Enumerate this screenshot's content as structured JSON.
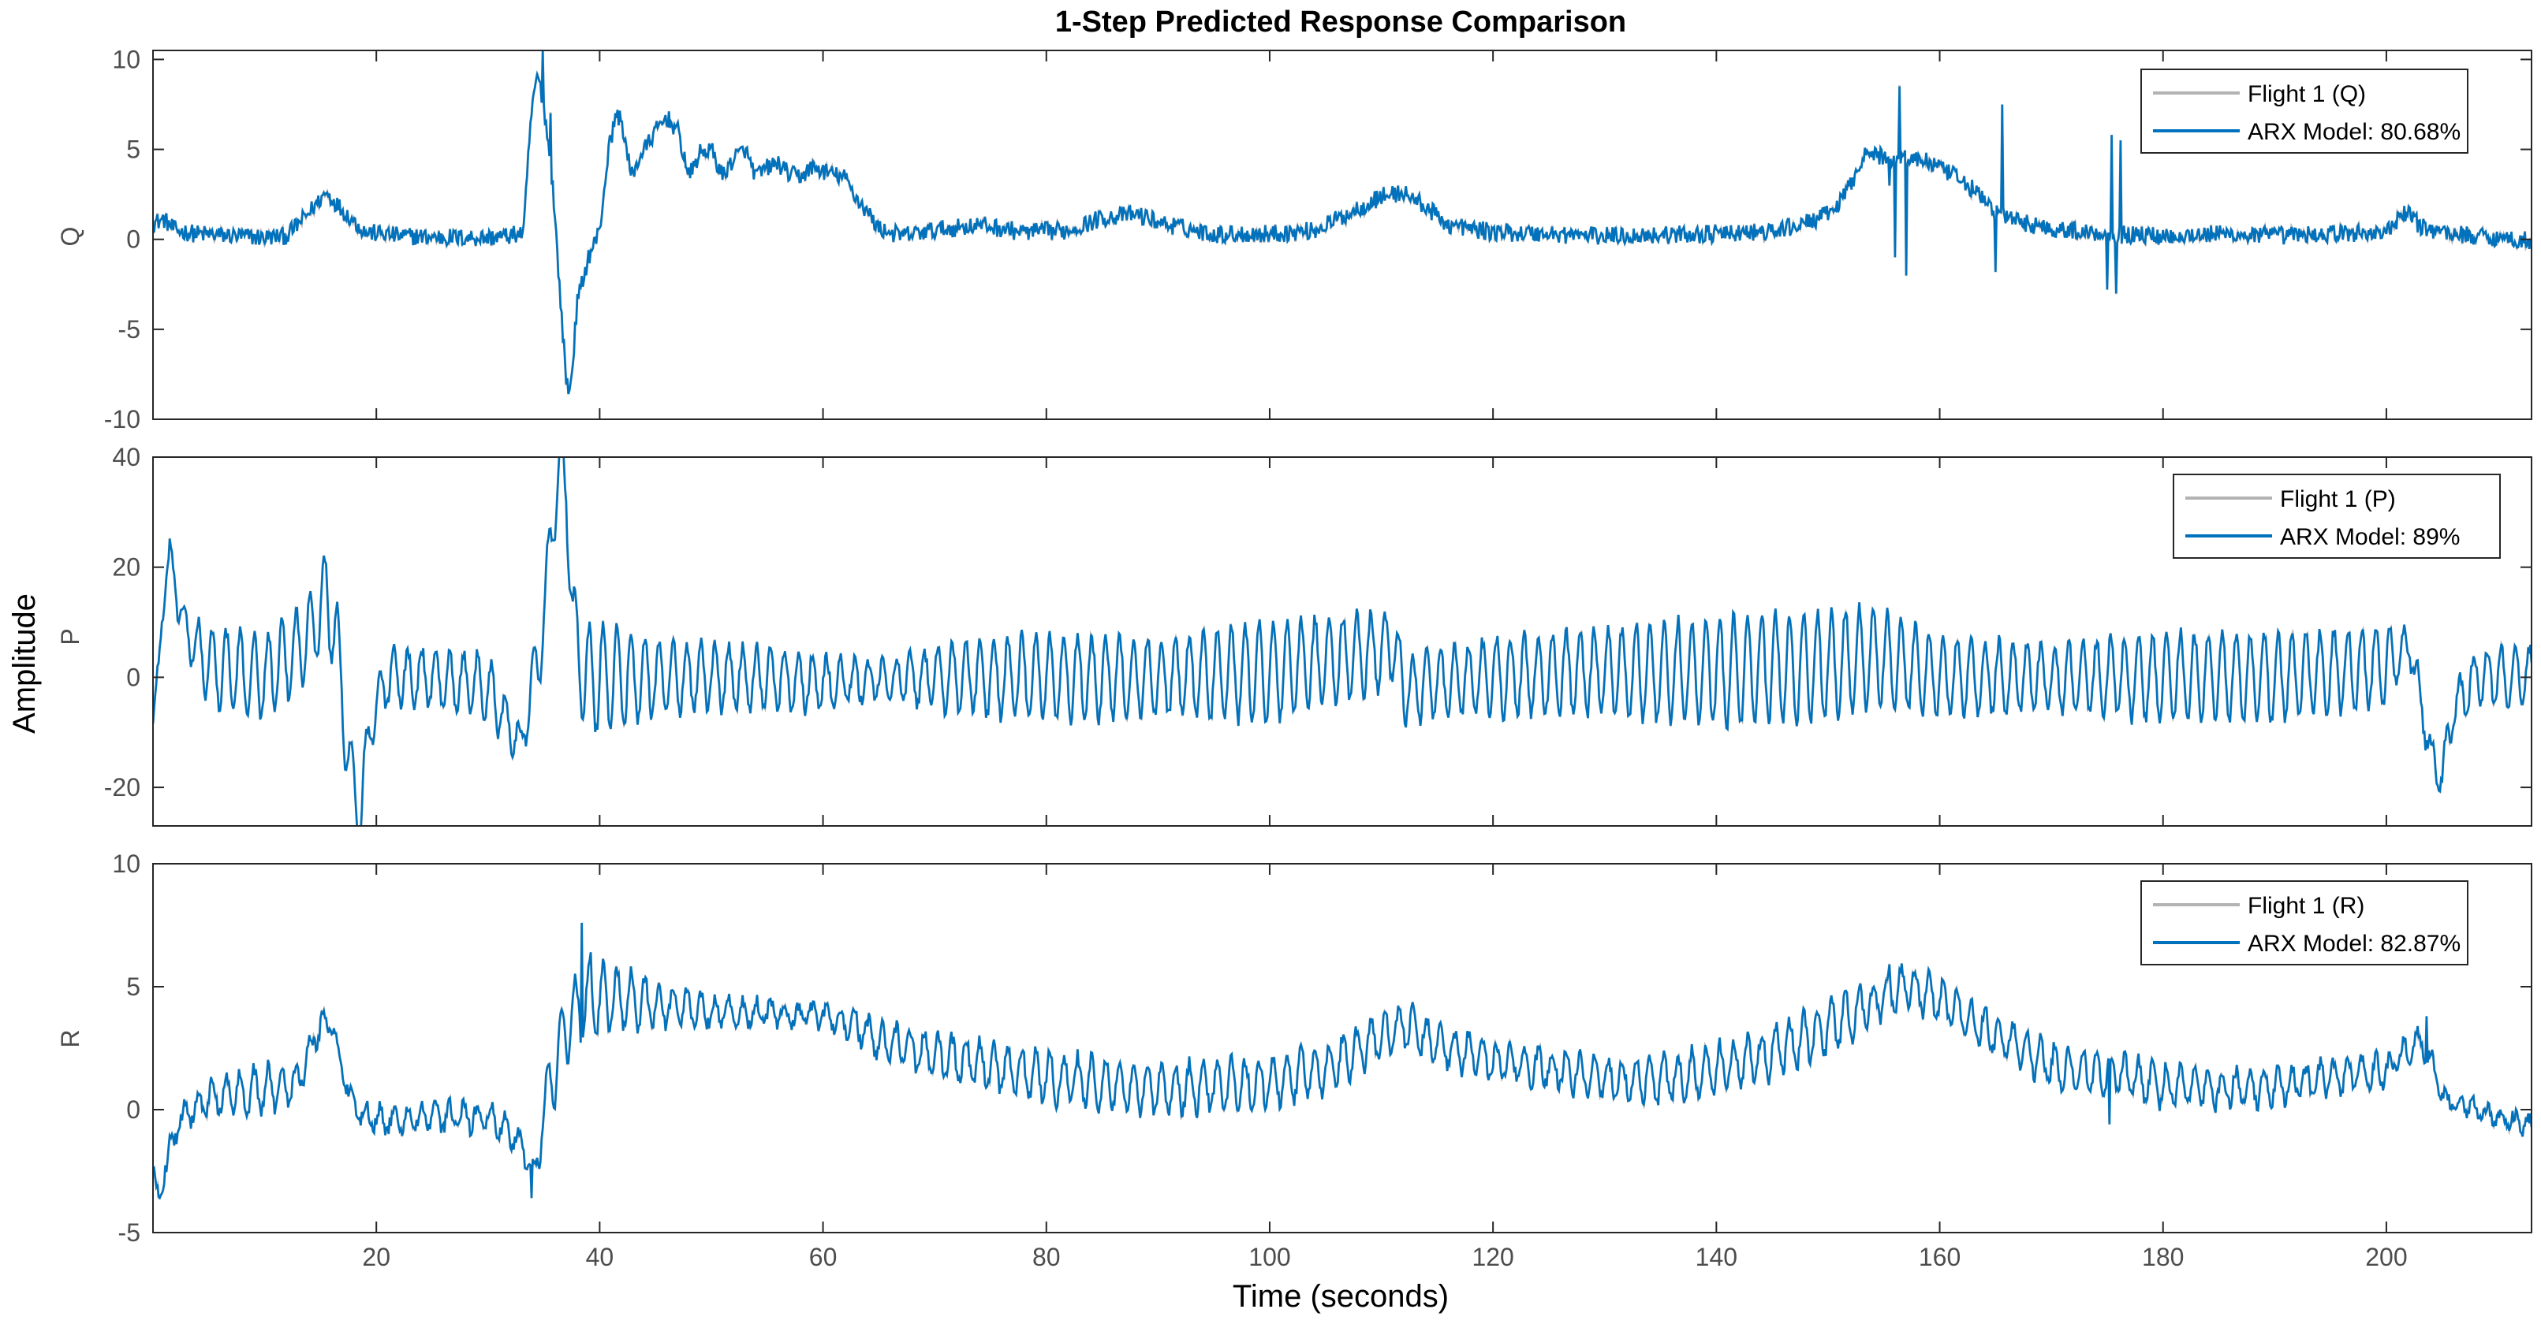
{
  "chart_data": {
    "type": "line",
    "title": "1-Step Predicted Response Comparison",
    "xlabel": "Time (seconds)",
    "ylabel": "Amplitude",
    "xlim": [
      0,
      213
    ],
    "xticks": [
      20,
      40,
      60,
      80,
      100,
      120,
      140,
      160,
      180,
      200
    ],
    "colors": {
      "measured": "#b3b3b3",
      "model": "#0072bd"
    },
    "panels": [
      {
        "id": "q",
        "ylabel": "Q",
        "ylim": [
          -10,
          10.5
        ],
        "yticks": [
          -10,
          -5,
          0,
          5,
          10
        ],
        "legend": [
          "Flight 1 (Q)",
          "ARX Model: 80.68%"
        ],
        "legend_position": "top-right",
        "base": [
          [
            0,
            0.9
          ],
          [
            1,
            1.1
          ],
          [
            2,
            0.5
          ],
          [
            4,
            0.3
          ],
          [
            7,
            0.2
          ],
          [
            10,
            0.1
          ],
          [
            12,
            0.2
          ],
          [
            14,
            1.5
          ],
          [
            15.5,
            2.6
          ],
          [
            17,
            1.6
          ],
          [
            19,
            0.4
          ],
          [
            22,
            0.2
          ],
          [
            26,
            0.1
          ],
          [
            30,
            0.1
          ],
          [
            32,
            0.2
          ],
          [
            33.2,
            0.4
          ],
          [
            33.8,
            6.5
          ],
          [
            34.4,
            9.2
          ],
          [
            35,
            7.5
          ],
          [
            35.8,
            3
          ],
          [
            36.5,
            -3.5
          ],
          [
            37,
            -7.8
          ],
          [
            37.4,
            -8.2
          ],
          [
            38,
            -3.5
          ],
          [
            39,
            -1
          ],
          [
            40,
            0.5
          ],
          [
            40.8,
            5
          ],
          [
            41.5,
            7
          ],
          [
            42,
            6.5
          ],
          [
            42.8,
            3.5
          ],
          [
            43.8,
            4.8
          ],
          [
            45,
            6
          ],
          [
            46,
            6.8
          ],
          [
            47,
            6
          ],
          [
            48,
            3.5
          ],
          [
            49,
            4.8
          ],
          [
            50,
            5
          ],
          [
            51,
            3.5
          ],
          [
            52,
            4.5
          ],
          [
            53,
            5
          ],
          [
            54,
            3.5
          ],
          [
            55,
            4
          ],
          [
            56,
            4.2
          ],
          [
            57,
            3.6
          ],
          [
            58,
            3.5
          ],
          [
            59,
            4
          ],
          [
            60,
            3.8
          ],
          [
            62,
            3.4
          ],
          [
            63,
            2.3
          ],
          [
            64,
            1.5
          ],
          [
            65,
            0.6
          ],
          [
            67,
            0.2
          ],
          [
            70,
            0.5
          ],
          [
            74,
            0.8
          ],
          [
            78,
            0.4
          ],
          [
            82,
            0.5
          ],
          [
            85,
            1.2
          ],
          [
            88,
            1.4
          ],
          [
            91,
            0.8
          ],
          [
            95,
            0.3
          ],
          [
            100,
            0.3
          ],
          [
            104,
            0.5
          ],
          [
            107,
            1.4
          ],
          [
            110,
            2.4
          ],
          [
            112,
            2.6
          ],
          [
            114,
            1.8
          ],
          [
            116,
            0.8
          ],
          [
            120,
            0.4
          ],
          [
            125,
            0.3
          ],
          [
            130,
            0.2
          ],
          [
            140,
            0.3
          ],
          [
            145,
            0.4
          ],
          [
            148,
            0.9
          ],
          [
            150,
            1.4
          ],
          [
            151,
            2
          ],
          [
            152,
            3
          ],
          [
            153,
            4.5
          ],
          [
            154,
            4.8
          ],
          [
            155,
            4.5
          ],
          [
            157,
            4.6
          ],
          [
            159,
            4.3
          ],
          [
            161,
            3.6
          ],
          [
            163,
            2.8
          ],
          [
            165,
            1.5
          ],
          [
            167,
            1
          ],
          [
            170,
            0.6
          ],
          [
            175,
            0.3
          ],
          [
            180,
            0.2
          ],
          [
            185,
            0.3
          ],
          [
            190,
            0.2
          ],
          [
            195,
            0.3
          ],
          [
            200,
            0.4
          ],
          [
            201,
            1
          ],
          [
            202,
            1.6
          ],
          [
            203,
            0.7
          ],
          [
            206,
            0.3
          ],
          [
            210,
            0.1
          ],
          [
            213,
            -0.1
          ]
        ],
        "noise": 0.5,
        "spikes": [
          [
            34.9,
            10.5
          ],
          [
            35.6,
            7
          ],
          [
            37.2,
            -8.6
          ],
          [
            155.5,
            3
          ],
          [
            156,
            -1
          ],
          [
            156.4,
            8.5
          ],
          [
            157,
            -2
          ],
          [
            165,
            -1.8
          ],
          [
            165.6,
            7.5
          ],
          [
            175,
            -2.8
          ],
          [
            175.4,
            5.8
          ],
          [
            175.8,
            -3
          ],
          [
            176.2,
            5.5
          ]
        ]
      },
      {
        "id": "p",
        "ylabel": "P",
        "ylim": [
          -27,
          40
        ],
        "yticks": [
          -20,
          0,
          20,
          40
        ],
        "legend": [
          "Flight 1 (P)",
          "ARX Model:  89%"
        ],
        "legend_position": "top-right",
        "base": [
          [
            0,
            -8
          ],
          [
            0.8,
            10
          ],
          [
            1.5,
            23
          ],
          [
            2.2,
            14
          ],
          [
            3,
            8
          ],
          [
            5,
            2
          ],
          [
            10,
            0
          ],
          [
            13,
            5
          ],
          [
            14.5,
            10
          ],
          [
            15.5,
            15
          ],
          [
            16.5,
            6
          ],
          [
            17.5,
            -15
          ],
          [
            18.5,
            -26
          ],
          [
            19.5,
            -8
          ],
          [
            21,
            0
          ],
          [
            25,
            0
          ],
          [
            30,
            -2
          ],
          [
            32,
            -9
          ],
          [
            33,
            -12
          ],
          [
            33.8,
            -3
          ],
          [
            35,
            10
          ],
          [
            35.8,
            30
          ],
          [
            36.5,
            38
          ],
          [
            37,
            36
          ],
          [
            37.6,
            10
          ],
          [
            38.5,
            0
          ],
          [
            40,
            0
          ],
          [
            50,
            0
          ],
          [
            55,
            0
          ],
          [
            60,
            -1
          ],
          [
            70,
            0
          ],
          [
            80,
            0
          ],
          [
            90,
            0
          ],
          [
            100,
            1
          ],
          [
            108,
            4
          ],
          [
            110,
            5
          ],
          [
            111,
            6
          ],
          [
            112,
            -2
          ],
          [
            120,
            0
          ],
          [
            130,
            1
          ],
          [
            140,
            1
          ],
          [
            150,
            2
          ],
          [
            154,
            4
          ],
          [
            157,
            2
          ],
          [
            160,
            0
          ],
          [
            170,
            0
          ],
          [
            180,
            0
          ],
          [
            190,
            0
          ],
          [
            200,
            2
          ],
          [
            202,
            6
          ],
          [
            203,
            -3
          ],
          [
            204,
            -15
          ],
          [
            205,
            -18
          ],
          [
            206,
            -6
          ],
          [
            208,
            0
          ],
          [
            213,
            0
          ]
        ],
        "osc": [
          [
            0,
            0
          ],
          [
            3,
            4
          ],
          [
            5,
            7
          ],
          [
            17,
            8
          ],
          [
            20,
            5
          ],
          [
            30,
            6
          ],
          [
            33,
            3
          ],
          [
            34,
            6
          ],
          [
            40,
            10
          ],
          [
            45,
            7
          ],
          [
            50,
            6
          ],
          [
            60,
            5
          ],
          [
            65,
            3
          ],
          [
            70,
            6
          ],
          [
            80,
            8
          ],
          [
            90,
            7
          ],
          [
            100,
            9
          ],
          [
            110,
            7
          ],
          [
            115,
            6
          ],
          [
            120,
            7
          ],
          [
            130,
            8
          ],
          [
            140,
            10
          ],
          [
            150,
            10
          ],
          [
            155,
            9
          ],
          [
            160,
            7
          ],
          [
            170,
            6
          ],
          [
            180,
            8
          ],
          [
            190,
            8
          ],
          [
            200,
            7
          ],
          [
            202,
            3
          ],
          [
            206,
            4
          ],
          [
            213,
            6
          ]
        ],
        "period": 1.25,
        "noise": 1.2,
        "spikes": []
      },
      {
        "id": "r",
        "ylabel": "R",
        "ylim": [
          -5,
          10
        ],
        "yticks": [
          -5,
          0,
          5,
          10
        ],
        "legend": [
          "Flight 1 (R)",
          "ARX Model: 82.87%"
        ],
        "legend_position": "top-right",
        "base": [
          [
            0,
            -2.5
          ],
          [
            0.6,
            -3.5
          ],
          [
            1.5,
            -1.5
          ],
          [
            3,
            0
          ],
          [
            6,
            0.6
          ],
          [
            10,
            0.8
          ],
          [
            13,
            1.2
          ],
          [
            15,
            3.5
          ],
          [
            16,
            3.6
          ],
          [
            17,
            1.5
          ],
          [
            18,
            0
          ],
          [
            21,
            -0.5
          ],
          [
            25,
            -0.3
          ],
          [
            30,
            -0.3
          ],
          [
            33,
            -1.3
          ],
          [
            34.2,
            -2.8
          ],
          [
            35,
            0
          ],
          [
            37,
            3.5
          ],
          [
            39,
            4.5
          ],
          [
            41,
            4.5
          ],
          [
            45,
            4.3
          ],
          [
            50,
            4
          ],
          [
            55,
            3.9
          ],
          [
            60,
            3.8
          ],
          [
            62,
            3.6
          ],
          [
            65,
            2.8
          ],
          [
            70,
            2.2
          ],
          [
            80,
            1.3
          ],
          [
            90,
            0.8
          ],
          [
            100,
            1.1
          ],
          [
            105,
            1.7
          ],
          [
            110,
            3
          ],
          [
            112,
            3.5
          ],
          [
            115,
            2.6
          ],
          [
            120,
            2
          ],
          [
            125,
            1.7
          ],
          [
            130,
            1.3
          ],
          [
            135,
            1.2
          ],
          [
            140,
            1.6
          ],
          [
            145,
            2.3
          ],
          [
            150,
            3.3
          ],
          [
            155,
            4.6
          ],
          [
            157,
            5
          ],
          [
            160,
            4.5
          ],
          [
            165,
            3
          ],
          [
            170,
            1.8
          ],
          [
            175,
            1.5
          ],
          [
            180,
            1
          ],
          [
            185,
            0.9
          ],
          [
            190,
            0.9
          ],
          [
            195,
            1.3
          ],
          [
            200,
            1.6
          ],
          [
            203,
            2.8
          ],
          [
            204,
            2
          ],
          [
            205,
            0.5
          ],
          [
            208,
            0
          ],
          [
            213,
            -0.6
          ]
        ],
        "osc": [
          [
            0,
            0
          ],
          [
            3,
            0.6
          ],
          [
            10,
            1
          ],
          [
            15,
            0.5
          ],
          [
            17,
            0.3
          ],
          [
            20,
            0.5
          ],
          [
            30,
            0.5
          ],
          [
            34,
            0.5
          ],
          [
            36,
            1.6
          ],
          [
            40,
            1.4
          ],
          [
            45,
            0.9
          ],
          [
            50,
            0.5
          ],
          [
            60,
            0.4
          ],
          [
            65,
            0.7
          ],
          [
            70,
            0.9
          ],
          [
            80,
            1
          ],
          [
            90,
            1
          ],
          [
            100,
            1
          ],
          [
            110,
            0.9
          ],
          [
            120,
            0.7
          ],
          [
            130,
            0.8
          ],
          [
            140,
            1
          ],
          [
            150,
            1
          ],
          [
            155,
            0.9
          ],
          [
            160,
            0.8
          ],
          [
            170,
            0.8
          ],
          [
            180,
            0.8
          ],
          [
            190,
            0.7
          ],
          [
            200,
            0.6
          ],
          [
            205,
            0.3
          ],
          [
            213,
            0.3
          ]
        ],
        "period": 1.25,
        "noise": 0.3,
        "spikes": [
          [
            33.9,
            -3.6
          ],
          [
            38.4,
            7.6
          ],
          [
            39.2,
            6.4
          ],
          [
            155.5,
            5.9
          ],
          [
            175.2,
            -0.6
          ],
          [
            203.6,
            3.8
          ]
        ]
      }
    ]
  }
}
